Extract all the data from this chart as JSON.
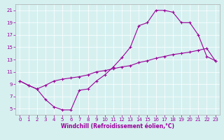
{
  "xlabel": "Windchill (Refroidissement éolien,°C)",
  "bg_color": "#d6f0f0",
  "line_color": "#990099",
  "xlim": [
    -0.5,
    23.5
  ],
  "ylim": [
    4,
    22
  ],
  "xticks": [
    0,
    1,
    2,
    3,
    4,
    5,
    6,
    7,
    8,
    9,
    10,
    11,
    12,
    13,
    14,
    15,
    16,
    17,
    18,
    19,
    20,
    21,
    22,
    23
  ],
  "yticks": [
    5,
    7,
    9,
    11,
    13,
    15,
    17,
    19,
    21
  ],
  "line1_x": [
    0,
    1,
    2,
    3,
    4,
    5,
    6,
    7,
    8,
    9,
    10,
    11,
    12,
    13,
    14,
    15,
    16,
    17,
    18,
    19,
    20,
    21,
    22,
    23
  ],
  "line1_y": [
    9.5,
    8.8,
    8.2,
    6.5,
    5.3,
    4.8,
    4.8,
    8.0,
    8.2,
    9.5,
    10.5,
    11.8,
    13.3,
    15.0,
    18.5,
    19.0,
    21.0,
    21.0,
    20.7,
    19.0,
    19.0,
    17.0,
    13.5,
    12.8
  ],
  "line2_x": [
    0,
    1,
    2,
    3,
    4,
    5,
    6,
    7,
    8,
    9,
    10,
    11,
    12,
    13,
    14,
    15,
    16,
    17,
    18,
    19,
    20,
    21,
    22,
    23
  ],
  "line2_y": [
    9.5,
    8.8,
    8.2,
    8.8,
    9.5,
    9.8,
    10.0,
    10.2,
    10.5,
    11.0,
    11.2,
    11.5,
    11.8,
    12.0,
    12.5,
    12.8,
    13.2,
    13.5,
    13.8,
    14.0,
    14.2,
    14.5,
    14.8,
    12.8
  ],
  "xlabel_fontsize": 5.5,
  "tick_fontsize": 5.0,
  "grid_color": "#ffffff",
  "spine_color": "#aaaaaa"
}
